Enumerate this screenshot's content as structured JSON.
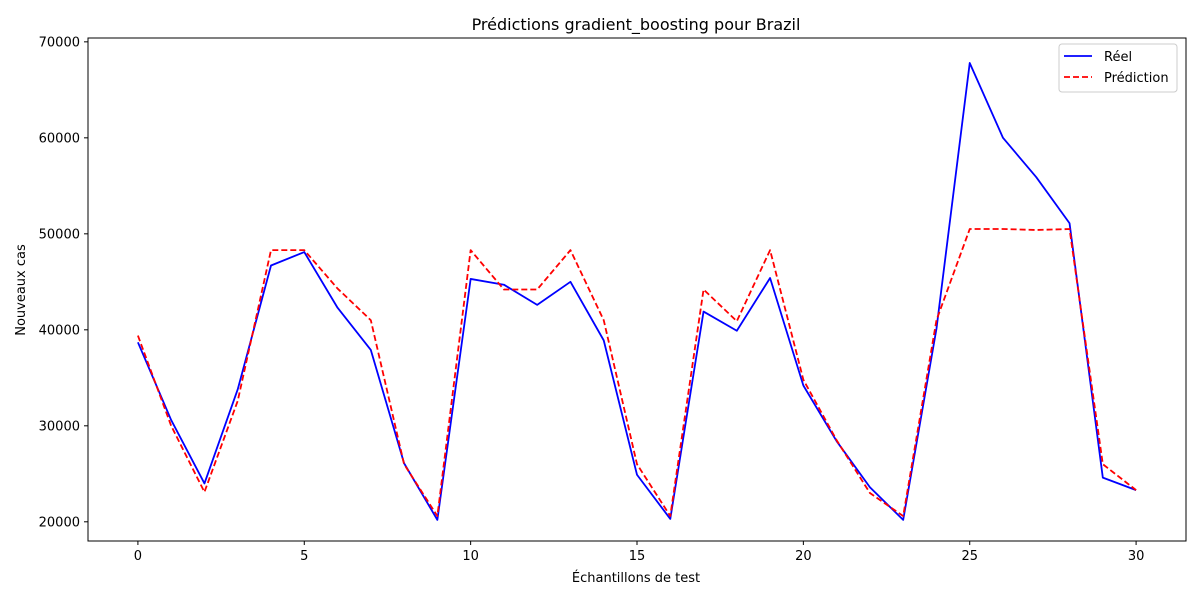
{
  "chart_data": {
    "type": "line",
    "title": "Prédictions gradient_boosting pour Brazil",
    "xlabel": "Échantillons de test",
    "ylabel": "Nouveaux cas",
    "x": [
      0,
      1,
      2,
      3,
      4,
      5,
      6,
      7,
      8,
      9,
      10,
      11,
      12,
      13,
      14,
      15,
      16,
      17,
      18,
      19,
      20,
      21,
      22,
      23,
      24,
      25,
      26,
      27,
      28,
      29,
      30
    ],
    "xlim": [
      -1.5,
      31.5
    ],
    "ylim": [
      18000,
      70400
    ],
    "xticks": [
      0,
      5,
      10,
      15,
      20,
      25,
      30
    ],
    "yticks": [
      20000,
      30000,
      40000,
      50000,
      60000,
      70000
    ],
    "grid": false,
    "legend_position": "top-right",
    "series": [
      {
        "name": "Réel",
        "color": "#0000ff",
        "style": "solid",
        "values": [
          38700,
          30600,
          24000,
          33800,
          46700,
          48100,
          42300,
          37900,
          26100,
          20200,
          45300,
          44700,
          42600,
          45000,
          38900,
          24900,
          20300,
          41900,
          39900,
          45400,
          34200,
          28400,
          23600,
          20200,
          40100,
          67800,
          60000,
          55900,
          51100,
          24600,
          23300
        ]
      },
      {
        "name": "Prédiction",
        "color": "#ff0000",
        "style": "dashed",
        "values": [
          39400,
          30000,
          23100,
          32600,
          48300,
          48300,
          44300,
          41000,
          26000,
          20600,
          48300,
          44200,
          44200,
          48300,
          41000,
          26000,
          20600,
          44200,
          40900,
          48300,
          34800,
          28500,
          23000,
          20600,
          41000,
          50500,
          50500,
          50400,
          50500,
          26000,
          23300
        ]
      }
    ]
  }
}
